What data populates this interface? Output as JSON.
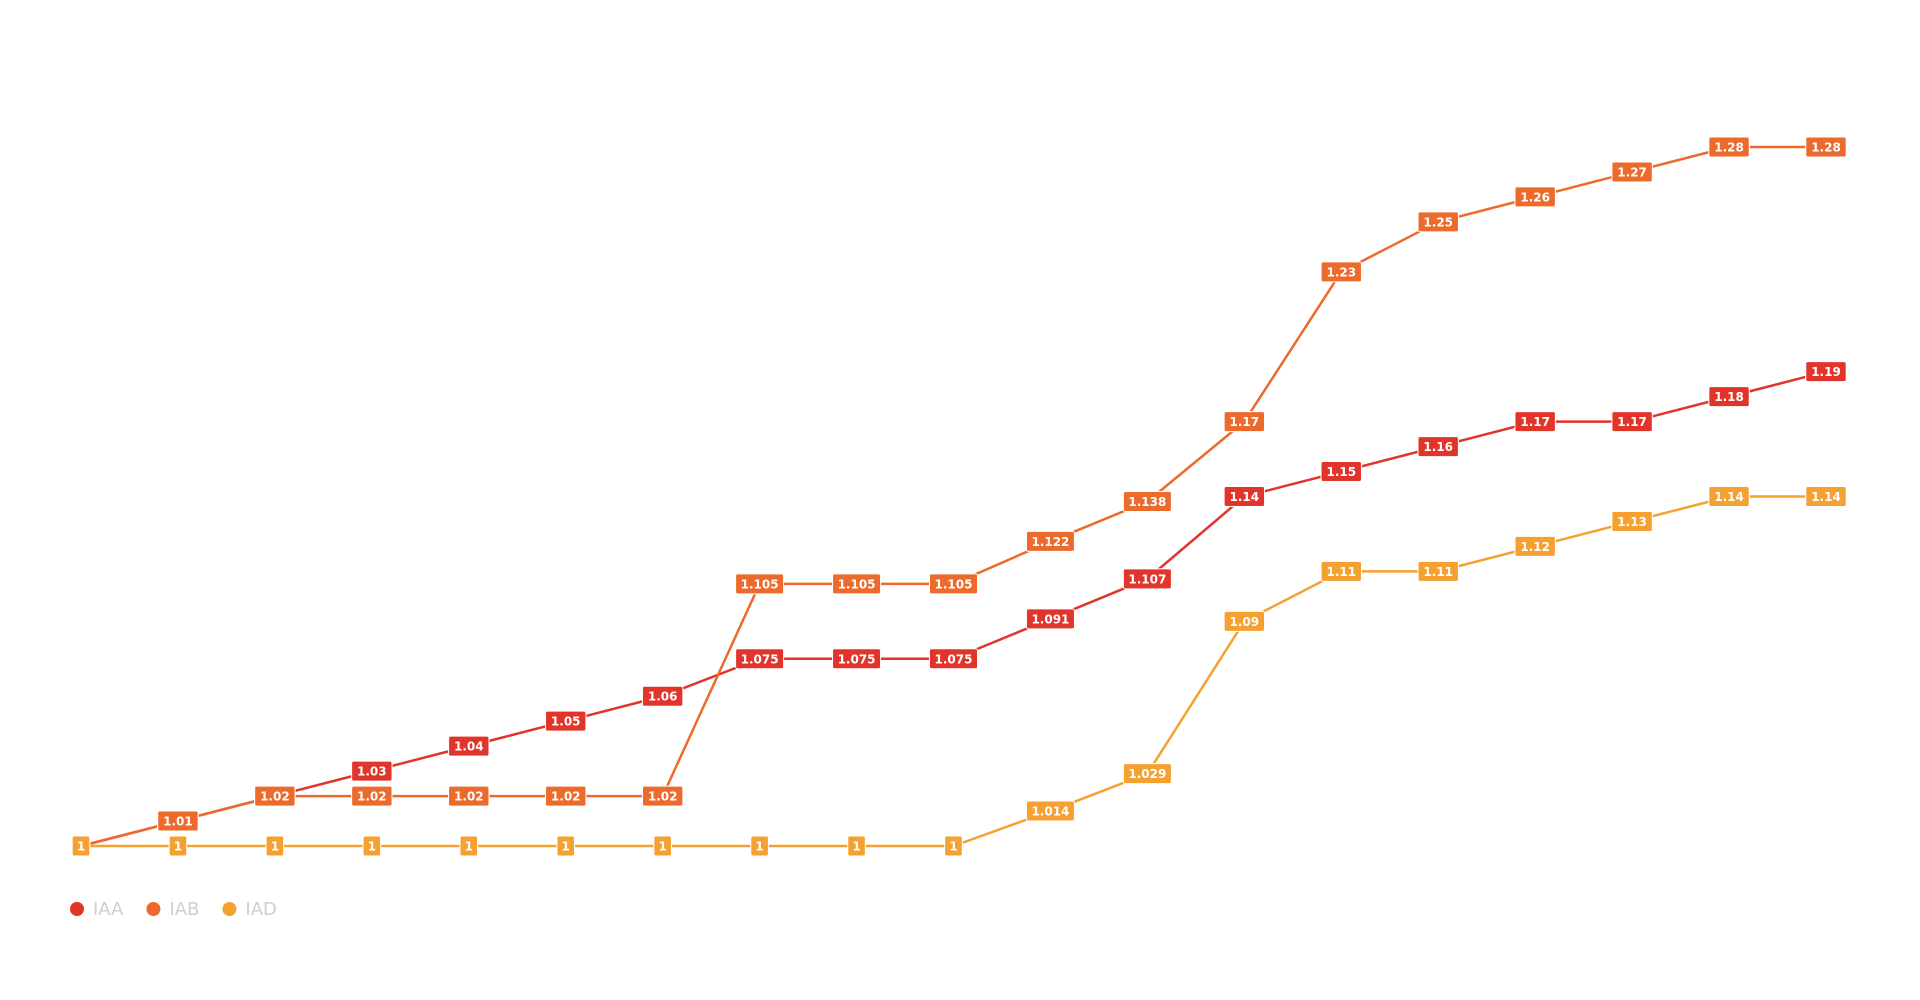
{
  "chart_data": {
    "type": "line",
    "categories": [
      null,
      null,
      null,
      null,
      null,
      null,
      null,
      null,
      null,
      null,
      null,
      null,
      null,
      null,
      null,
      null,
      null,
      null,
      null
    ],
    "series": [
      {
        "name": "IAA",
        "color": "#e1352b",
        "values": [
          1,
          1.01,
          1.02,
          1.03,
          1.04,
          1.05,
          1.06,
          1.075,
          1.075,
          1.075,
          1.091,
          1.107,
          1.14,
          1.15,
          1.16,
          1.17,
          1.17,
          1.18,
          1.19
        ]
      },
      {
        "name": "IAB",
        "color": "#ec6a2b",
        "values": [
          1,
          1.01,
          1.02,
          1.02,
          1.02,
          1.02,
          1.02,
          1.105,
          1.105,
          1.105,
          1.122,
          1.138,
          1.17,
          1.23,
          1.25,
          1.26,
          1.27,
          1.28,
          1.28
        ]
      },
      {
        "name": "IAD",
        "color": "#f4a132",
        "values": [
          1,
          1,
          1,
          1,
          1,
          1,
          1,
          1,
          1,
          1,
          1.014,
          1.029,
          1.09,
          1.11,
          1.11,
          1.12,
          1.13,
          1.14,
          1.14
        ]
      }
    ],
    "legend": "bottom-left"
  }
}
